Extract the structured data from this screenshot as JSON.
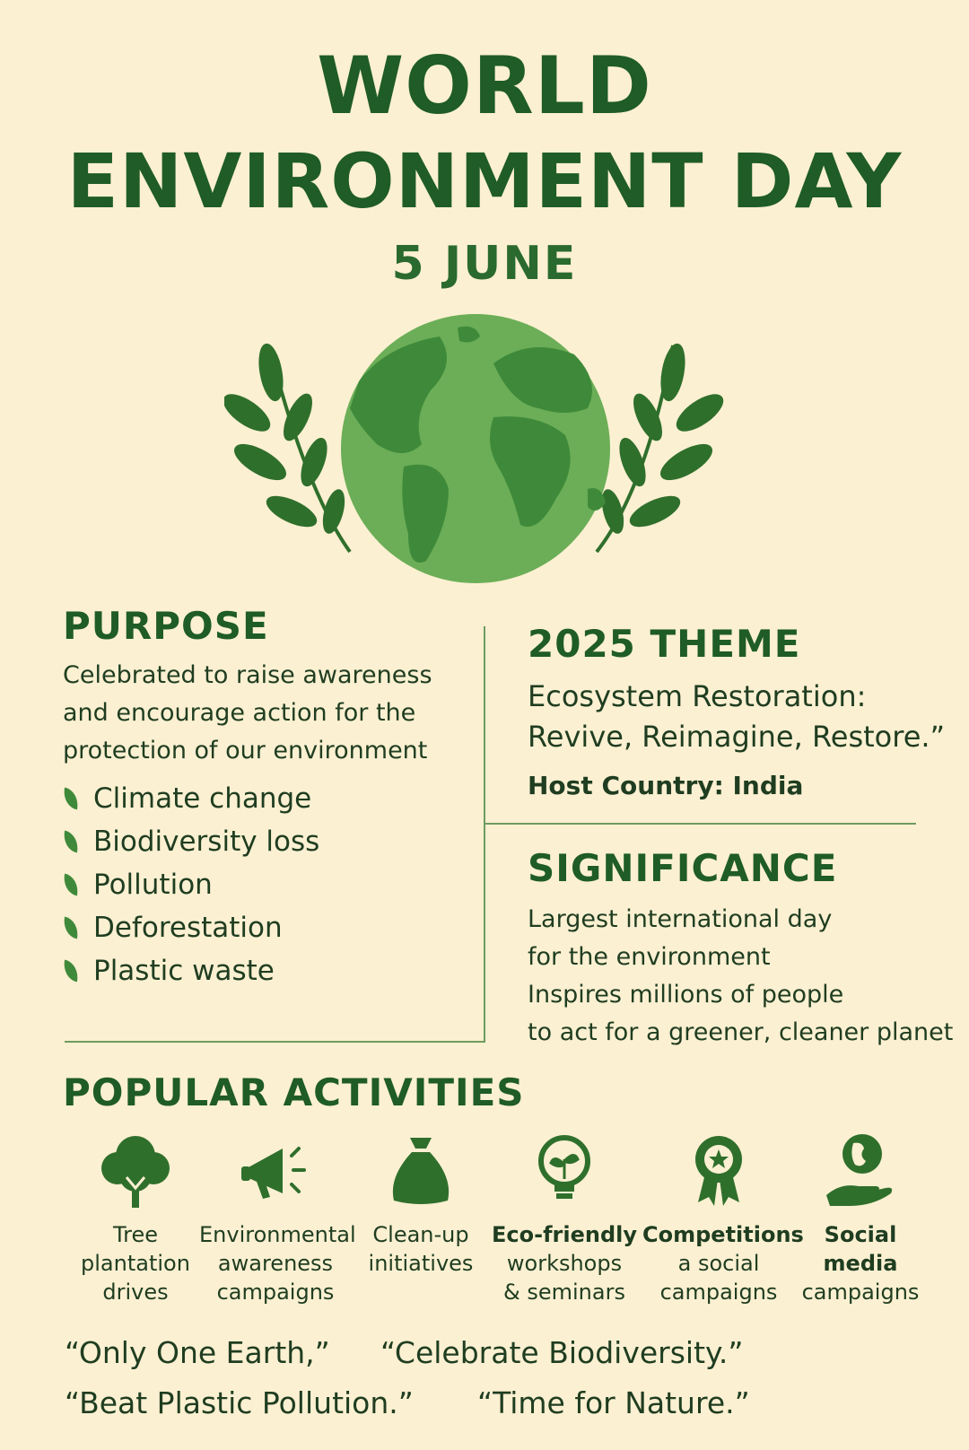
{
  "header": {
    "title_line1": "WORLD",
    "title_line2": "ENVIRONMENT DAY",
    "date": "5 JUNE"
  },
  "purpose": {
    "heading": "PURPOSE",
    "text": "Celebrated to raise awareness and encourage action for the protection of our environment",
    "items": [
      "Climate change",
      "Biodiversity loss",
      "Pollution",
      "Deforestation",
      "Plastic waste"
    ]
  },
  "theme": {
    "heading": "2025 THEME",
    "line1": "Ecosystem Restoration:",
    "line2": "Revive, Reimagine, Restore.”",
    "host": "Host Country: India"
  },
  "significance": {
    "heading": "SIGNIFICANCE",
    "line1": "Largest international day",
    "line2": "for the environment",
    "line3": "Inspires millions of people",
    "line4": "to act for a greener, cleaner  planet"
  },
  "activities": {
    "heading": "POPULAR ACTIVITIES",
    "items": [
      {
        "icon": "tree-icon",
        "label": "Tree\nplantation\ndrives"
      },
      {
        "icon": "megaphone-icon",
        "label": "Environmental\nawareness\ncampaigns"
      },
      {
        "icon": "bag-icon",
        "label": "Clean-up\ninitiatives"
      },
      {
        "icon": "lightbulb-icon",
        "label_bold": "Eco-friendly",
        "label": "workshops\n& seminars"
      },
      {
        "icon": "award-icon",
        "label_bold": "Competitions",
        "label": "a social\ncampaigns"
      },
      {
        "icon": "hand-globe-icon",
        "label_bold": "Social\nmedia",
        "label": "campaigns"
      }
    ]
  },
  "slogans": {
    "q1": "“Only One Earth,”",
    "q2": "“Celebrate Biodiversity.”",
    "q3": "“Beat Plastic Pollution.”",
    "q4": "“Time for Nature.”"
  },
  "colors": {
    "background": "#fcf0d2",
    "title_green": "#1f5c27",
    "globe_green": "#6bae57",
    "land_green": "#3f8a3a"
  }
}
